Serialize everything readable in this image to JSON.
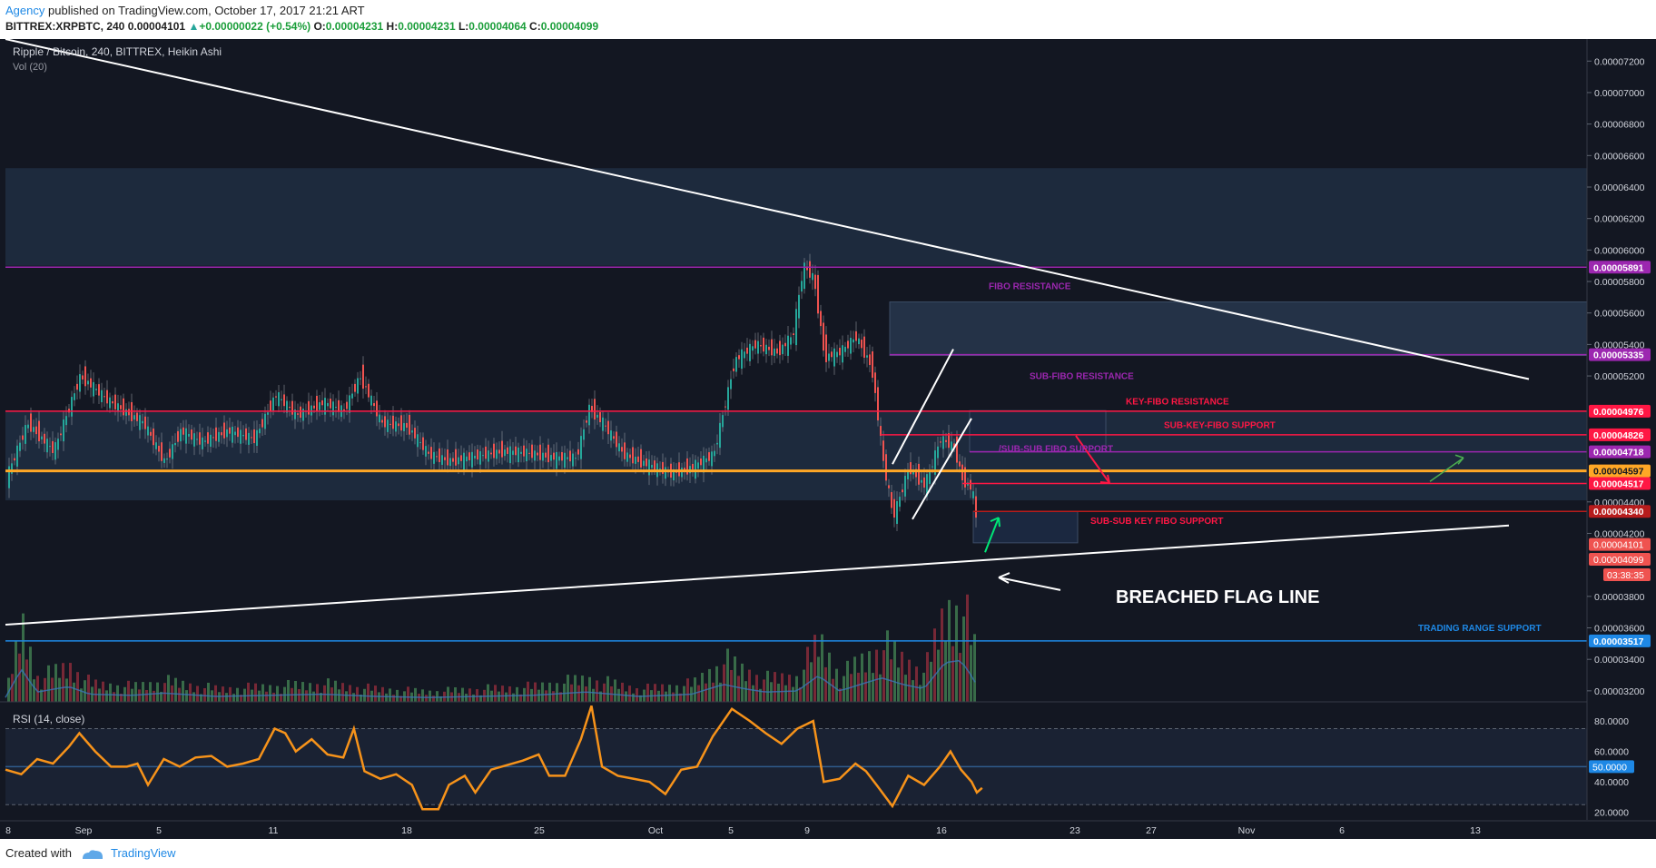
{
  "header": {
    "author": "Agency",
    "published": "published on TradingView.com, October 17, 2017 21:21 ART",
    "symbol": "BITTREX:XRPBTC, 240",
    "last": "0.00004101",
    "change": "+0.00000022 (+0.54%)",
    "o_label": "O:",
    "o": "0.00004231",
    "h_label": "H:",
    "h": "0.00004231",
    "l_label": "L:",
    "l": "0.00004064",
    "c_label": "C:",
    "c": "0.00004099"
  },
  "main_pane": {
    "title": "Ripple / Bitcoin, 240, BITTREX, Heikin Ashi",
    "vol_label": "Vol (20)",
    "countdown": "03:38:35"
  },
  "rsi_pane": {
    "label": "RSI (14, close)"
  },
  "footer": {
    "created_with": "Created with",
    "brand": "TradingView"
  },
  "colors": {
    "background": "#131722",
    "zone": "#1f2c40",
    "up": "#26a69a",
    "down": "#ef5350",
    "purple": "#9c27b0",
    "red": "#ff1744",
    "orange": "#ffa726",
    "blue": "#2962ff",
    "rsi": "#f7931a"
  },
  "chart_data": {
    "type": "candlestick",
    "price_axis": {
      "ticks": [
        "0.00007200",
        "0.00007000",
        "0.00006800",
        "0.00006600",
        "0.00006400",
        "0.00006200",
        "0.00006000",
        "0.00005800",
        "0.00005600",
        "0.00005400",
        "0.00005200",
        "0.00004400",
        "0.00004200",
        "0.00003800",
        "0.00003600",
        "0.00003400",
        "0.00003200"
      ],
      "ylim": [
        3.13e-05,
        7.34e-05
      ]
    },
    "time_axis": [
      "8",
      "Sep",
      "5",
      "11",
      "18",
      "25",
      "Oct",
      "5",
      "9",
      "16",
      "23",
      "27",
      "Nov",
      "6",
      "13"
    ],
    "rsi_axis": {
      "ticks": [
        "80.0000",
        "60.0000",
        "40.0000",
        "20.0000"
      ],
      "ylim": [
        15,
        92
      ],
      "highlight": "50.0000"
    },
    "horizontal_levels": [
      {
        "value": "0.00005891",
        "price": 5.891e-05,
        "color": "#9c27b0"
      },
      {
        "value": "0.00005335",
        "price": 5.335e-05,
        "color": "#9c27b0"
      },
      {
        "value": "0.00004976",
        "price": 4.976e-05,
        "color": "#ff1744"
      },
      {
        "value": "0.00004826",
        "price": 4.826e-05,
        "color": "#ff1744"
      },
      {
        "value": "0.00004718",
        "price": 4.718e-05,
        "color": "#9c27b0"
      },
      {
        "value": "0.00004597",
        "price": 4.597e-05,
        "color": "#ffa726"
      },
      {
        "value": "0.00004517",
        "price": 4.517e-05,
        "color": "#ff1744"
      },
      {
        "value": "0.00004340",
        "price": 4.34e-05,
        "color": "#b71c1c"
      },
      {
        "value": "0.00003517",
        "price": 3.517e-05,
        "color": "#1e88e5"
      }
    ],
    "price_tags": [
      {
        "value": "0.00004101",
        "price": 4.101e-05,
        "color": "#ef5350"
      },
      {
        "value": "0.00004099",
        "price": 4.099e-05,
        "color": "#ef5350"
      }
    ],
    "annotations": [
      {
        "text": "FIBO RESISTANCE",
        "color": "#9c27b0"
      },
      {
        "text": "SUB-FIBO RESISTANCE",
        "color": "#9c27b0"
      },
      {
        "text": "KEY-FIBO RESISTANCE",
        "color": "#ff1744"
      },
      {
        "text": "SUB-KEY-FIBO SUPPORT",
        "color": "#ff1744"
      },
      {
        "text": "/SUB-SUB FIBO SUPPORT",
        "color": "#9c27b0"
      },
      {
        "text": "SUB-SUB KEY FIBO SUPPORT",
        "color": "#ff1744"
      },
      {
        "text": "BREACHED FLAG LINE",
        "color": "#ffffff"
      },
      {
        "text": "TRADING RANGE SUPPORT",
        "color": "#1e88e5"
      }
    ],
    "price_path": [
      [
        0,
        4.55e-05
      ],
      [
        20,
        4.9e-05
      ],
      [
        45,
        4.72e-05
      ],
      [
        70,
        5.2e-05
      ],
      [
        95,
        5.05e-05
      ],
      [
        130,
        4.9e-05
      ],
      [
        150,
        4.65e-05
      ],
      [
        165,
        4.85e-05
      ],
      [
        185,
        4.78e-05
      ],
      [
        210,
        4.85e-05
      ],
      [
        235,
        4.8e-05
      ],
      [
        255,
        5.08e-05
      ],
      [
        275,
        4.95e-05
      ],
      [
        300,
        5.03e-05
      ],
      [
        320,
        4.98e-05
      ],
      [
        335,
        5.2e-05
      ],
      [
        355,
        4.9e-05
      ],
      [
        380,
        4.88e-05
      ],
      [
        400,
        4.7e-05
      ],
      [
        420,
        4.66e-05
      ],
      [
        445,
        4.69e-05
      ],
      [
        470,
        4.72e-05
      ],
      [
        495,
        4.71e-05
      ],
      [
        520,
        4.68e-05
      ],
      [
        540,
        4.68e-05
      ],
      [
        552,
        5e-05
      ],
      [
        565,
        4.9e-05
      ],
      [
        585,
        4.7e-05
      ],
      [
        610,
        4.63e-05
      ],
      [
        630,
        4.58e-05
      ],
      [
        650,
        4.62e-05
      ],
      [
        670,
        4.7e-05
      ],
      [
        690,
        5.3e-05
      ],
      [
        710,
        5.4e-05
      ],
      [
        730,
        5.35e-05
      ],
      [
        745,
        5.45e-05
      ],
      [
        755,
        5.9e-05
      ],
      [
        765,
        5.82e-05
      ],
      [
        775,
        5.32e-05
      ],
      [
        790,
        5.35e-05
      ],
      [
        805,
        5.45e-05
      ],
      [
        820,
        5.25e-05
      ],
      [
        830,
        4.68e-05
      ],
      [
        840,
        4.3e-05
      ],
      [
        855,
        4.62e-05
      ],
      [
        870,
        4.5e-05
      ],
      [
        885,
        4.8e-05
      ],
      [
        898,
        4.75e-05
      ],
      [
        905,
        4.55e-05
      ],
      [
        915,
        4.48e-05
      ],
      [
        922,
        4.1e-05
      ]
    ],
    "volume_path": [
      [
        0,
        4
      ],
      [
        15,
        30
      ],
      [
        30,
        9
      ],
      [
        60,
        14
      ],
      [
        80,
        7
      ],
      [
        120,
        6
      ],
      [
        150,
        8
      ],
      [
        200,
        5
      ],
      [
        250,
        6
      ],
      [
        300,
        7
      ],
      [
        350,
        5
      ],
      [
        400,
        4
      ],
      [
        450,
        5
      ],
      [
        500,
        6
      ],
      [
        550,
        9
      ],
      [
        600,
        5
      ],
      [
        650,
        7
      ],
      [
        680,
        16
      ],
      [
        700,
        12
      ],
      [
        720,
        9
      ],
      [
        750,
        10
      ],
      [
        770,
        24
      ],
      [
        790,
        10
      ],
      [
        810,
        16
      ],
      [
        830,
        22
      ],
      [
        850,
        16
      ],
      [
        870,
        12
      ],
      [
        890,
        36
      ],
      [
        905,
        38
      ],
      [
        915,
        24
      ],
      [
        922,
        12
      ]
    ],
    "rsi_path": [
      [
        0,
        48
      ],
      [
        15,
        45
      ],
      [
        30,
        55
      ],
      [
        45,
        52
      ],
      [
        60,
        63
      ],
      [
        70,
        72
      ],
      [
        85,
        60
      ],
      [
        100,
        50
      ],
      [
        115,
        50
      ],
      [
        125,
        52
      ],
      [
        135,
        38
      ],
      [
        150,
        55
      ],
      [
        165,
        50
      ],
      [
        180,
        56
      ],
      [
        195,
        57
      ],
      [
        210,
        50
      ],
      [
        225,
        52
      ],
      [
        240,
        55
      ],
      [
        255,
        75
      ],
      [
        265,
        72
      ],
      [
        275,
        60
      ],
      [
        290,
        68
      ],
      [
        305,
        58
      ],
      [
        320,
        56
      ],
      [
        330,
        75
      ],
      [
        340,
        47
      ],
      [
        355,
        42
      ],
      [
        370,
        45
      ],
      [
        385,
        38
      ],
      [
        395,
        22
      ],
      [
        410,
        22
      ],
      [
        420,
        38
      ],
      [
        435,
        44
      ],
      [
        445,
        33
      ],
      [
        460,
        48
      ],
      [
        475,
        51
      ],
      [
        490,
        54
      ],
      [
        505,
        58
      ],
      [
        515,
        44
      ],
      [
        530,
        44
      ],
      [
        545,
        68
      ],
      [
        555,
        90
      ],
      [
        565,
        50
      ],
      [
        580,
        44
      ],
      [
        595,
        42
      ],
      [
        610,
        40
      ],
      [
        625,
        32
      ],
      [
        640,
        48
      ],
      [
        655,
        50
      ],
      [
        670,
        70
      ],
      [
        688,
        88
      ],
      [
        705,
        80
      ],
      [
        720,
        72
      ],
      [
        735,
        65
      ],
      [
        750,
        75
      ],
      [
        765,
        80
      ],
      [
        775,
        40
      ],
      [
        790,
        42
      ],
      [
        805,
        52
      ],
      [
        815,
        47
      ],
      [
        825,
        38
      ],
      [
        840,
        24
      ],
      [
        855,
        44
      ],
      [
        870,
        38
      ],
      [
        885,
        50
      ],
      [
        895,
        60
      ],
      [
        905,
        48
      ],
      [
        915,
        40
      ],
      [
        920,
        33
      ],
      [
        925,
        36
      ]
    ]
  }
}
